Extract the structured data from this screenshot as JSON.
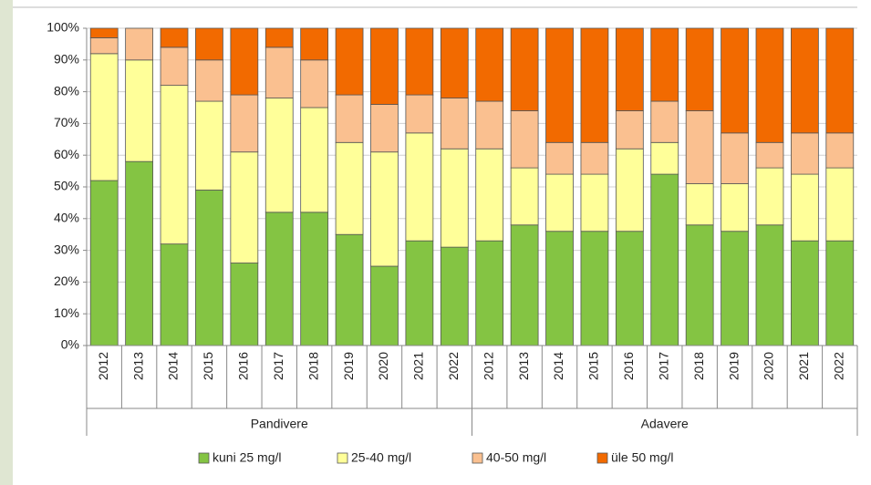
{
  "chart_data": {
    "type": "stacked_bar",
    "groups": [
      {
        "name": "Pandivere",
        "categories": [
          "2012",
          "2013",
          "2014",
          "2015",
          "2016",
          "2017",
          "2018",
          "2019",
          "2020",
          "2021",
          "2022"
        ]
      },
      {
        "name": "Adavere",
        "categories": [
          "2012",
          "2013",
          "2014",
          "2015",
          "2016",
          "2017",
          "2018",
          "2019",
          "2020",
          "2021",
          "2022"
        ]
      }
    ],
    "series": [
      {
        "name": "kuni 25 mg/l",
        "color": "#84c443",
        "values": [
          52,
          58,
          32,
          49,
          26,
          42,
          42,
          35,
          25,
          33,
          31,
          33,
          38,
          36,
          36,
          36,
          54,
          38,
          36,
          38,
          33,
          33
        ]
      },
      {
        "name": "25-40 mg/l",
        "color": "#ffff99",
        "values": [
          40,
          32,
          50,
          28,
          35,
          36,
          33,
          29,
          36,
          34,
          31,
          29,
          18,
          18,
          18,
          26,
          10,
          13,
          15,
          18,
          21,
          23
        ]
      },
      {
        "name": "40-50 mg/l",
        "color": "#fac090",
        "values": [
          5,
          10,
          12,
          13,
          18,
          16,
          15,
          15,
          15,
          12,
          16,
          15,
          18,
          10,
          10,
          12,
          13,
          23,
          16,
          8,
          13,
          11
        ]
      },
      {
        "name": "üle 50 mg/l",
        "color": "#f26a00",
        "values": [
          3,
          0,
          6,
          10,
          21,
          6,
          10,
          21,
          24,
          21,
          22,
          23,
          26,
          36,
          36,
          26,
          23,
          26,
          33,
          36,
          33,
          33
        ]
      }
    ],
    "ylim": [
      0,
      100
    ],
    "yticks": [
      {
        "value": 0,
        "label": "0%"
      },
      {
        "value": 10,
        "label": "10%"
      },
      {
        "value": 20,
        "label": "20%"
      },
      {
        "value": 30,
        "label": "30%"
      },
      {
        "value": 40,
        "label": "40%"
      },
      {
        "value": 50,
        "label": "50%"
      },
      {
        "value": 60,
        "label": "60%"
      },
      {
        "value": 70,
        "label": "70%"
      },
      {
        "value": 80,
        "label": "80%"
      },
      {
        "value": 90,
        "label": "90%"
      },
      {
        "value": 100,
        "label": "100%"
      }
    ],
    "grid": true
  }
}
